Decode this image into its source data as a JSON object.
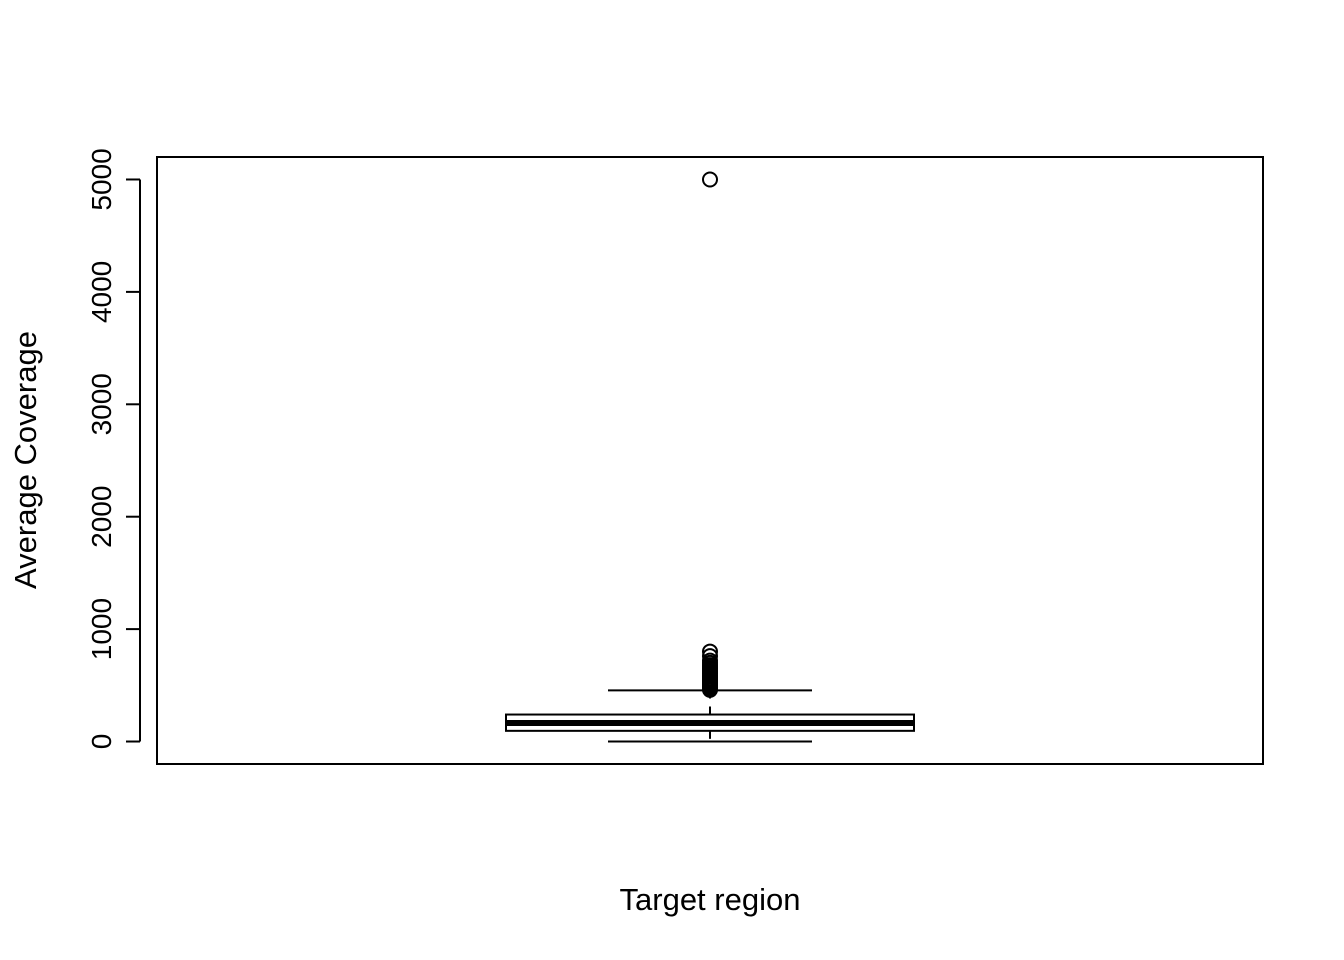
{
  "chart_data": {
    "type": "box",
    "xlabel": "Target region",
    "ylabel": "Average Coverage",
    "ylim": [
      -200,
      5200
    ],
    "yticks": [
      0,
      1000,
      2000,
      3000,
      4000,
      5000
    ],
    "grid": false,
    "boxes": [
      {
        "whisker_low": 0,
        "q1": 95,
        "median": 165,
        "q3": 240,
        "whisker_high": 455,
        "outliers": [
          460,
          470,
          480,
          490,
          500,
          510,
          520,
          530,
          540,
          550,
          560,
          575,
          590,
          605,
          620,
          635,
          650,
          665,
          680,
          700,
          720,
          760,
          800,
          5000
        ]
      }
    ]
  }
}
